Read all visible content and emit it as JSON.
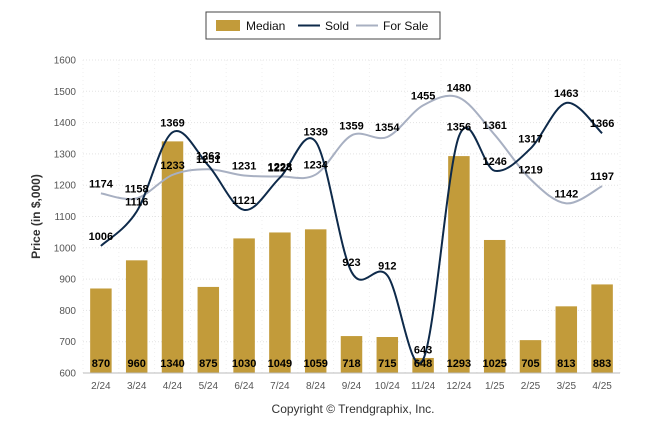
{
  "chart_data": {
    "type": "bar",
    "ylabel": "Price (in $,000)",
    "ylim": [
      600,
      1600
    ],
    "yticks": [
      600,
      700,
      800,
      900,
      1000,
      1100,
      1200,
      1300,
      1400,
      1500,
      1600
    ],
    "grid": true,
    "legend_placement": "top-center",
    "categories": [
      "2/24",
      "3/24",
      "4/24",
      "5/24",
      "6/24",
      "7/24",
      "8/24",
      "9/24",
      "10/24",
      "11/24",
      "12/24",
      "1/25",
      "2/25",
      "3/25",
      "4/25"
    ],
    "series": [
      {
        "name": "Median",
        "type": "bar",
        "color": "#c29b3a",
        "values": [
          870,
          960,
          1340,
          875,
          1030,
          1049,
          1059,
          718,
          715,
          648,
          1293,
          1025,
          705,
          813,
          883
        ]
      },
      {
        "name": "Sold",
        "type": "line",
        "color": "#0e2a4a",
        "values": [
          1006,
          1116,
          1369,
          1263,
          1121,
          1224,
          1339,
          923,
          912,
          643,
          1356,
          1246,
          1317,
          1463,
          1366
        ]
      },
      {
        "name": "For Sale",
        "type": "line",
        "color": "#a8b0c2",
        "values": [
          1174,
          1158,
          1233,
          1251,
          1231,
          1228,
          1234,
          1359,
          1354,
          1455,
          1480,
          1361,
          1219,
          1142,
          1197
        ]
      }
    ]
  },
  "copyright": "Copyright © Trendgraphix, Inc."
}
